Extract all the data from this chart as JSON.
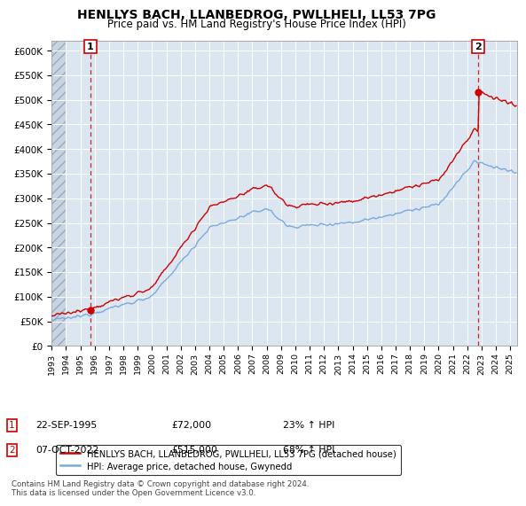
{
  "title": "HENLLYS BACH, LLANBEDROG, PWLLHELI, LL53 7PG",
  "subtitle": "Price paid vs. HM Land Registry's House Price Index (HPI)",
  "ylim": [
    0,
    620000
  ],
  "yticks": [
    0,
    50000,
    100000,
    150000,
    200000,
    250000,
    300000,
    350000,
    400000,
    450000,
    500000,
    550000,
    600000
  ],
  "ytick_labels": [
    "£0",
    "£50K",
    "£100K",
    "£150K",
    "£200K",
    "£250K",
    "£300K",
    "£350K",
    "£400K",
    "£450K",
    "£500K",
    "£550K",
    "£600K"
  ],
  "background_color": "#ffffff",
  "plot_bg_color": "#dce6f1",
  "grid_color": "#ffffff",
  "sale1_year": 1995.708,
  "sale1_value": 72000,
  "sale2_year": 2022.75,
  "sale2_value": 515000,
  "sale_marker_color": "#cc0000",
  "hpi_line_color": "#7aaadd",
  "price_line_color": "#cc0000",
  "legend_label1": "HENLLYS BACH, LLANBEDROG, PWLLHELI, LL53 7PG (detached house)",
  "legend_label2": "HPI: Average price, detached house, Gwynedd",
  "annotation1_date": "22-SEP-1995",
  "annotation1_price": "£72,000",
  "annotation1_hpi": "23% ↑ HPI",
  "annotation2_date": "07-OCT-2022",
  "annotation2_price": "£515,000",
  "annotation2_hpi": "68% ↑ HPI",
  "footer": "Contains HM Land Registry data © Crown copyright and database right 2024.\nThis data is licensed under the Open Government Licence v3.0.",
  "xlim_start": 1993.0,
  "xlim_end": 2025.5,
  "hatch_end": 1994.0
}
